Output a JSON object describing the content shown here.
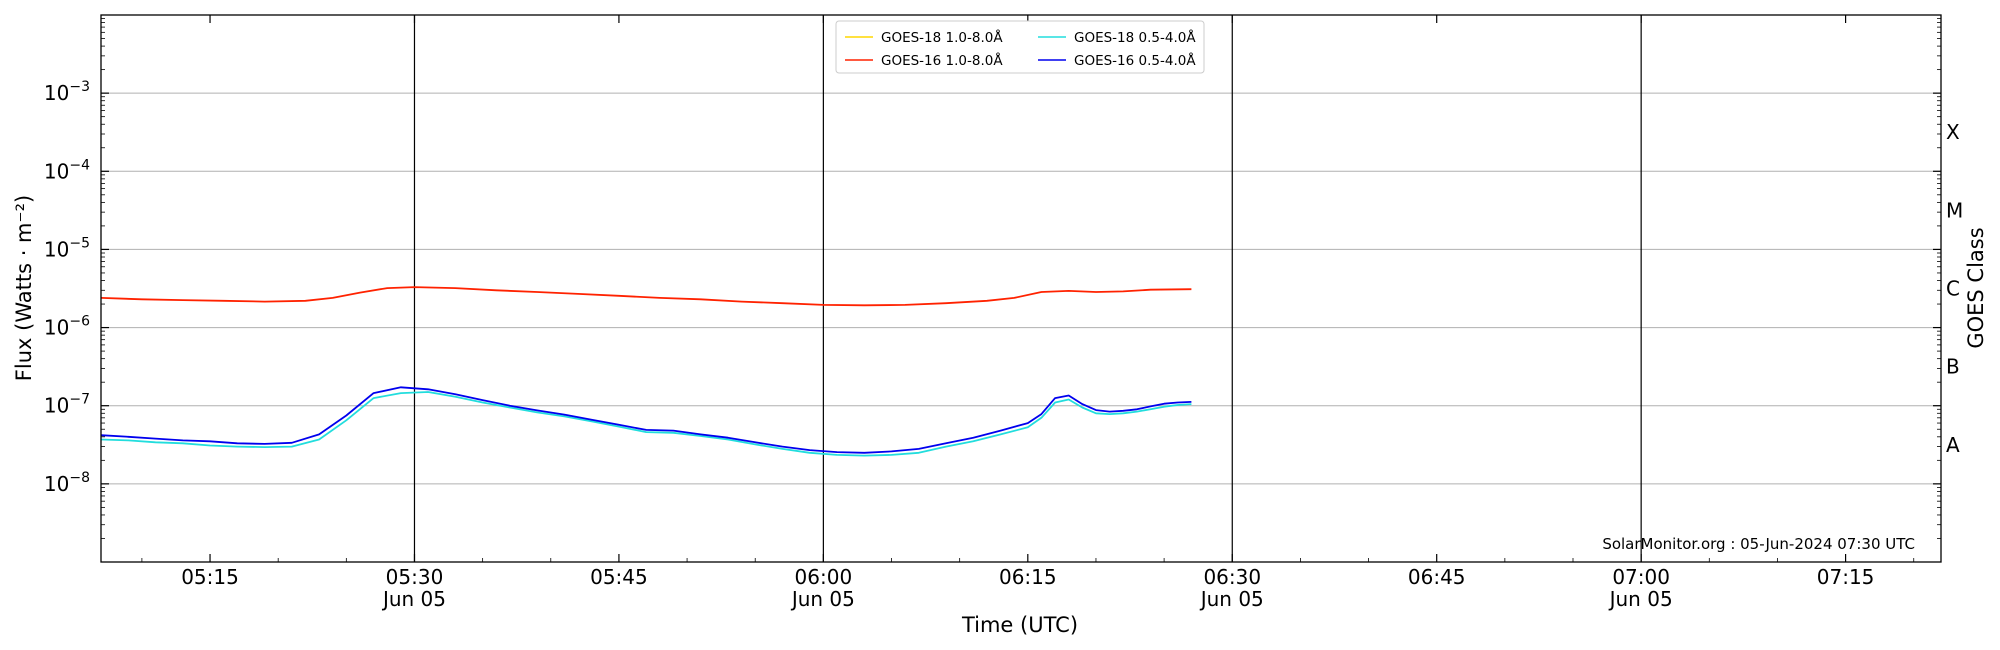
{
  "chart_data": {
    "type": "line",
    "xlabel": "Time (UTC)",
    "ylabel": "Flux (Watts · m⁻²)",
    "y2label": "GOES Class",
    "yscale": "log",
    "xlim": [
      "05:07",
      "07:22"
    ],
    "ylim": [
      1e-09,
      0.01
    ],
    "grid": "horizontal",
    "legend_position": "top-center",
    "credit": "SolarMonitor.org : 05-Jun-2024 07:30 UTC",
    "x_ticks": [
      {
        "time": "05:15",
        "label": "05:15",
        "sublabel": ""
      },
      {
        "time": "05:30",
        "label": "05:30",
        "sublabel": "Jun 05"
      },
      {
        "time": "05:45",
        "label": "05:45",
        "sublabel": ""
      },
      {
        "time": "06:00",
        "label": "06:00",
        "sublabel": "Jun 05"
      },
      {
        "time": "06:15",
        "label": "06:15",
        "sublabel": ""
      },
      {
        "time": "06:30",
        "label": "06:30",
        "sublabel": "Jun 05"
      },
      {
        "time": "06:45",
        "label": "06:45",
        "sublabel": ""
      },
      {
        "time": "07:00",
        "label": "07:00",
        "sublabel": "Jun 05"
      },
      {
        "time": "07:15",
        "label": "07:15",
        "sublabel": ""
      }
    ],
    "day_lines": [
      "05:30",
      "06:00",
      "06:30",
      "07:00"
    ],
    "y_ticks": [
      {
        "value": 0.001,
        "base": "10",
        "exp": "−3"
      },
      {
        "value": 0.0001,
        "base": "10",
        "exp": "−4"
      },
      {
        "value": 1e-05,
        "base": "10",
        "exp": "−5"
      },
      {
        "value": 1e-06,
        "base": "10",
        "exp": "−6"
      },
      {
        "value": 1e-07,
        "base": "10",
        "exp": "−7"
      },
      {
        "value": 1e-08,
        "base": "10",
        "exp": "−8"
      }
    ],
    "class_labels": [
      {
        "label": "X",
        "value": 0.000316
      },
      {
        "label": "M",
        "value": 3.16e-05
      },
      {
        "label": "C",
        "value": 3.16e-06
      },
      {
        "label": "B",
        "value": 3.16e-07
      },
      {
        "label": "A",
        "value": 3.16e-08
      }
    ],
    "series": [
      {
        "name": "GOES-18 1.0-8.0Å",
        "color": "#ffd700",
        "x": [],
        "y": []
      },
      {
        "name": "GOES-16 1.0-8.0Å",
        "color": "#ff2200",
        "x": [
          "05:07",
          "05:10",
          "05:13",
          "05:16",
          "05:19",
          "05:22",
          "05:24",
          "05:26",
          "05:28",
          "05:30",
          "05:33",
          "05:36",
          "05:39",
          "05:42",
          "05:45",
          "05:48",
          "05:51",
          "05:54",
          "05:57",
          "06:00",
          "06:03",
          "06:06",
          "06:09",
          "06:12",
          "06:14",
          "06:16",
          "06:18",
          "06:20",
          "06:22",
          "06:24",
          "06:27"
        ],
        "y": [
          2.4e-06,
          2.3e-06,
          2.25e-06,
          2.2e-06,
          2.15e-06,
          2.2e-06,
          2.4e-06,
          2.8e-06,
          3.2e-06,
          3.3e-06,
          3.2e-06,
          3e-06,
          2.85e-06,
          2.7e-06,
          2.55e-06,
          2.4e-06,
          2.3e-06,
          2.15e-06,
          2.05e-06,
          1.95e-06,
          1.93e-06,
          1.95e-06,
          2.05e-06,
          2.2e-06,
          2.4e-06,
          2.85e-06,
          2.95e-06,
          2.85e-06,
          2.9e-06,
          3.05e-06,
          3.1e-06
        ]
      },
      {
        "name": "GOES-18 0.5-4.0Å",
        "color": "#22dddd",
        "x": [
          "05:07",
          "05:09",
          "05:11",
          "05:13",
          "05:15",
          "05:17",
          "05:19",
          "05:21",
          "05:23",
          "05:25",
          "05:27",
          "05:29",
          "05:31",
          "05:33",
          "05:35",
          "05:37",
          "05:39",
          "05:41",
          "05:43",
          "05:45",
          "05:47",
          "05:49",
          "05:51",
          "05:53",
          "05:55",
          "05:57",
          "05:59",
          "06:01",
          "06:03",
          "06:05",
          "06:07",
          "06:09",
          "06:11",
          "06:13",
          "06:15",
          "06:16",
          "06:17",
          "06:18",
          "06:19",
          "06:20",
          "06:21",
          "06:22",
          "06:23",
          "06:24",
          "06:25",
          "06:26",
          "06:27"
        ],
        "y": [
          3.7e-08,
          3.6e-08,
          3.4e-08,
          3.3e-08,
          3.1e-08,
          3e-08,
          2.95e-08,
          3e-08,
          3.7e-08,
          6.5e-08,
          1.25e-07,
          1.45e-07,
          1.5e-07,
          1.3e-07,
          1.1e-07,
          9.5e-08,
          8.2e-08,
          7.3e-08,
          6.3e-08,
          5.4e-08,
          4.6e-08,
          4.5e-08,
          4.1e-08,
          3.7e-08,
          3.2e-08,
          2.8e-08,
          2.5e-08,
          2.35e-08,
          2.3e-08,
          2.35e-08,
          2.5e-08,
          3e-08,
          3.5e-08,
          4.3e-08,
          5.3e-08,
          7e-08,
          1.1e-07,
          1.2e-07,
          9.5e-08,
          8e-08,
          7.8e-08,
          8e-08,
          8.4e-08,
          9e-08,
          9.7e-08,
          1.02e-07,
          1.05e-07
        ]
      },
      {
        "name": "GOES-16 0.5-4.0Å",
        "color": "#0000ee",
        "x": [
          "05:07",
          "05:09",
          "05:11",
          "05:13",
          "05:15",
          "05:17",
          "05:19",
          "05:21",
          "05:23",
          "05:25",
          "05:27",
          "05:29",
          "05:31",
          "05:33",
          "05:35",
          "05:37",
          "05:39",
          "05:41",
          "05:43",
          "05:45",
          "05:47",
          "05:49",
          "05:51",
          "05:53",
          "05:55",
          "05:57",
          "05:59",
          "06:01",
          "06:03",
          "06:05",
          "06:07",
          "06:09",
          "06:11",
          "06:13",
          "06:15",
          "06:16",
          "06:17",
          "06:18",
          "06:19",
          "06:20",
          "06:21",
          "06:22",
          "06:23",
          "06:24",
          "06:25",
          "06:26",
          "06:27"
        ],
        "y": [
          4.2e-08,
          4e-08,
          3.8e-08,
          3.6e-08,
          3.5e-08,
          3.3e-08,
          3.25e-08,
          3.35e-08,
          4.3e-08,
          7.5e-08,
          1.45e-07,
          1.72e-07,
          1.62e-07,
          1.4e-07,
          1.18e-07,
          1e-07,
          8.7e-08,
          7.7e-08,
          6.6e-08,
          5.7e-08,
          4.9e-08,
          4.8e-08,
          4.3e-08,
          3.9e-08,
          3.4e-08,
          3e-08,
          2.7e-08,
          2.55e-08,
          2.5e-08,
          2.6e-08,
          2.8e-08,
          3.3e-08,
          3.9e-08,
          4.8e-08,
          6e-08,
          7.8e-08,
          1.25e-07,
          1.35e-07,
          1.05e-07,
          8.8e-08,
          8.4e-08,
          8.6e-08,
          9e-08,
          9.8e-08,
          1.06e-07,
          1.1e-07,
          1.12e-07
        ]
      }
    ],
    "legend_order": [
      0,
      2,
      1,
      3
    ]
  }
}
